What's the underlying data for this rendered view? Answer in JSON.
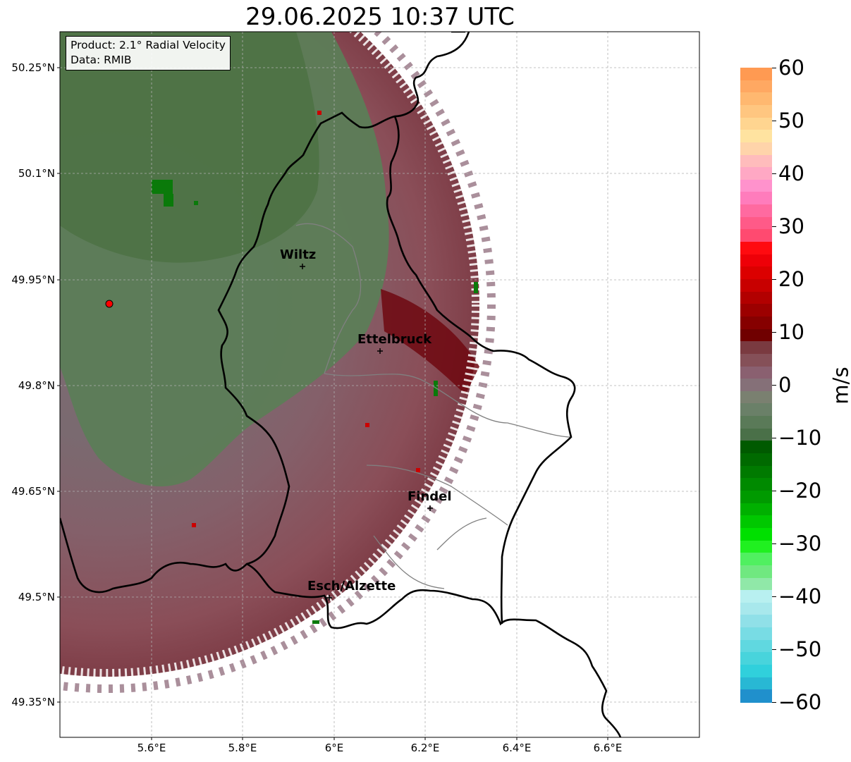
{
  "title": "29.06.2025 10:37 UTC",
  "info": {
    "product": "Product: 2.1° Radial Velocity",
    "data_source": "Data: RMIB"
  },
  "axes": {
    "lat_labels": [
      "50.25°N",
      "50.1°N",
      "49.95°N",
      "49.8°N",
      "49.65°N",
      "49.5°N",
      "49.35°N"
    ],
    "lon_labels": [
      "5.6°E",
      "5.8°E",
      "6°E",
      "6.2°E",
      "6.4°E",
      "6.6°E"
    ]
  },
  "cities": [
    {
      "name": "Wiltz"
    },
    {
      "name": "Ettelbruck"
    },
    {
      "name": "Findel"
    },
    {
      "name": "Esch/Alzette"
    }
  ],
  "colorbar": {
    "unit": "m/s",
    "ticks": [
      "60",
      "50",
      "40",
      "30",
      "20",
      "10",
      "0",
      "−10",
      "−20",
      "−30",
      "−40",
      "−50",
      "−60"
    ],
    "colors": [
      "#ff9a52",
      "#ffa862",
      "#ffb870",
      "#ffc680",
      "#ffd590",
      "#ffe3a0",
      "#ffd4aa",
      "#ffbcbc",
      "#ffa8c4",
      "#ff92cc",
      "#ff7cbc",
      "#ff6aa0",
      "#ff5a88",
      "#ff4a70",
      "#ff0a10",
      "#ee0008",
      "#dc0000",
      "#c80000",
      "#b20000",
      "#9c0000",
      "#860000",
      "#700000",
      "#7a3a40",
      "#855058",
      "#8a6070",
      "#857078",
      "#7a8070",
      "#6a8068",
      "#5a7a58",
      "#4a7048",
      "#005a00",
      "#006a00",
      "#007a00",
      "#008a00",
      "#009a00",
      "#00b000",
      "#00c800",
      "#00e000",
      "#20f020",
      "#50f060",
      "#70e880",
      "#90e8a8",
      "#b8f0f0",
      "#a8e8ec",
      "#90e0e8",
      "#78dce4",
      "#60d8e0",
      "#48d4dc",
      "#30d0dc",
      "#28b8d4",
      "#2090cc"
    ],
    "accent_ranges": {
      "zero_band": "#7a8070",
      "positive": "#8a0000",
      "negative": "#009a00"
    }
  },
  "map_colors": {
    "approaching": "#5c7d57",
    "receding": "#866070",
    "strong_receding": "#8a3e48",
    "border_country": "#000000",
    "border_canton": "#808080"
  }
}
